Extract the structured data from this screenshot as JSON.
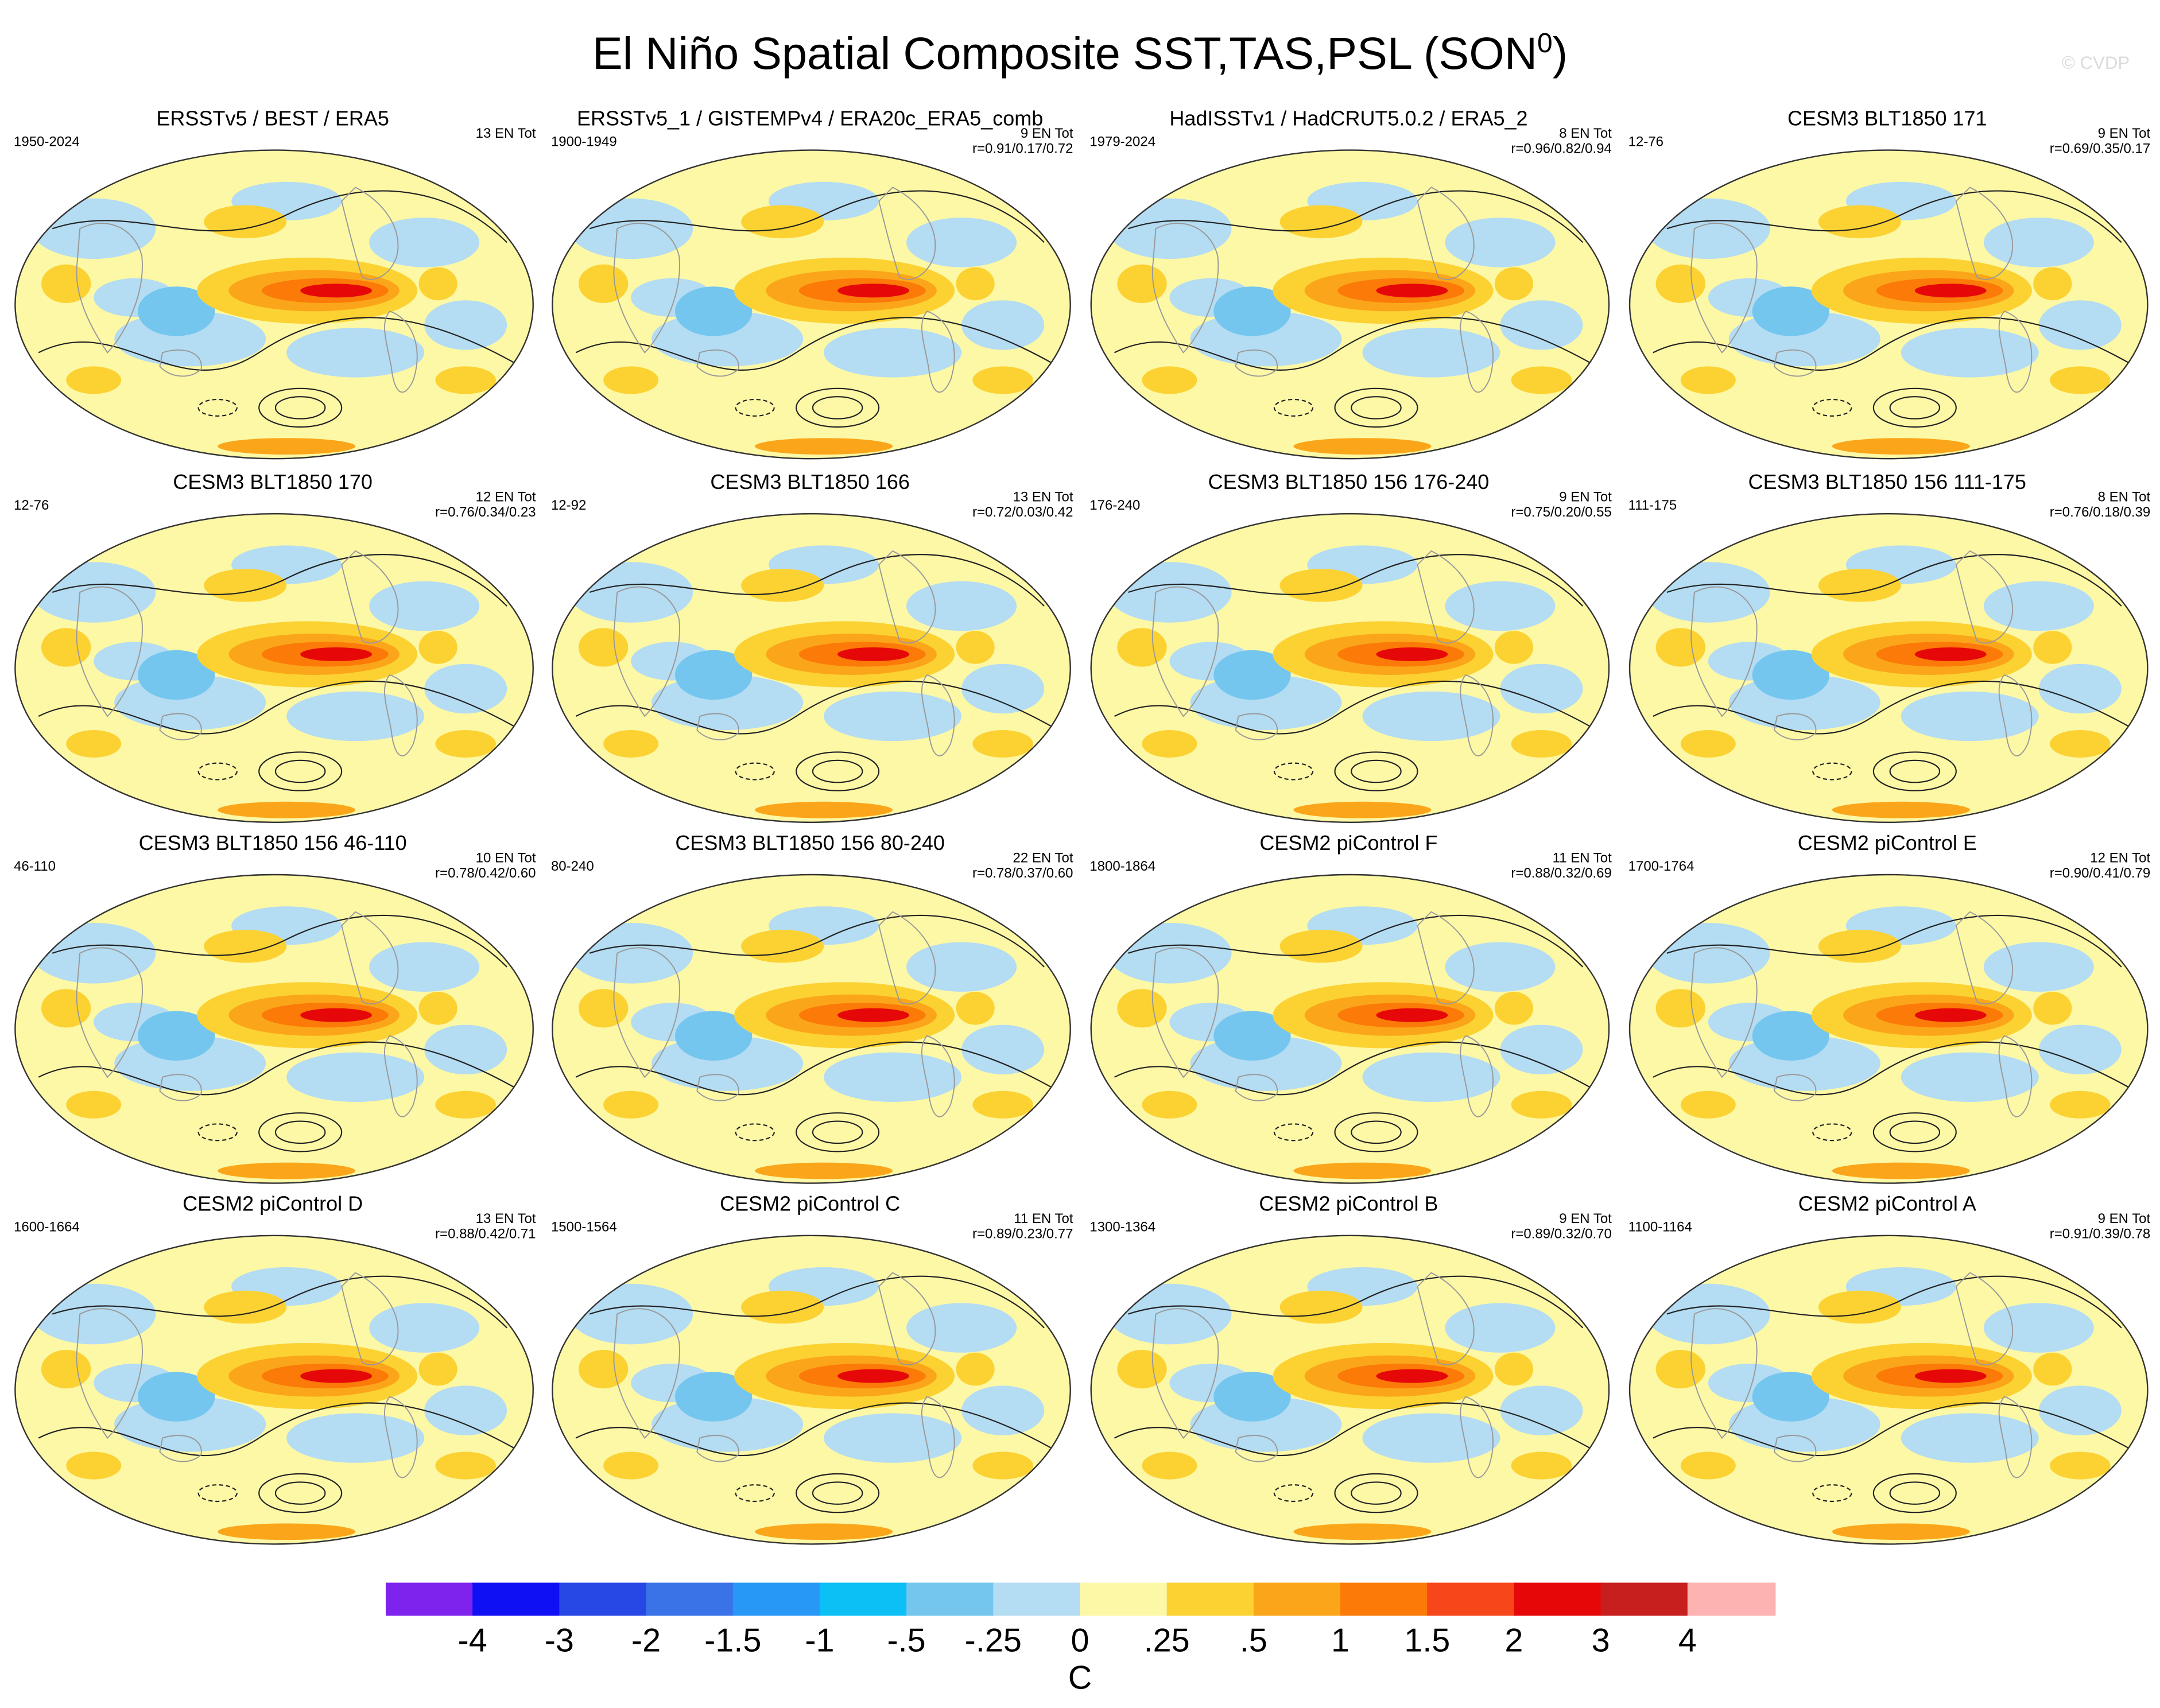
{
  "title": "El Niño Spatial Composite SST,TAS,PSL (SON",
  "title_superscript": "0",
  "title_close": ")",
  "watermark": "© CVDP",
  "panels": [
    {
      "title": "ERSSTv5 / BEST / ERA5",
      "years": "1950-2024",
      "count": "13 EN Tot",
      "r": ""
    },
    {
      "title": "ERSSTv5_1 / GISTEMPv4 / ERA20c_ERA5_comb",
      "years": "1900-1949",
      "count": "9 EN Tot",
      "r": "r=0.91/0.17/0.72"
    },
    {
      "title": "HadISSTv1 / HadCRUT5.0.2 / ERA5_2",
      "years": "1979-2024",
      "count": "8 EN Tot",
      "r": "r=0.96/0.82/0.94"
    },
    {
      "title": "CESM3 BLT1850 171",
      "years": "12-76",
      "count": "9 EN Tot",
      "r": "r=0.69/0.35/0.17"
    },
    {
      "title": "CESM3 BLT1850 170",
      "years": "12-76",
      "count": "12 EN Tot",
      "r": "r=0.76/0.34/0.23"
    },
    {
      "title": "CESM3 BLT1850 166",
      "years": "12-92",
      "count": "13 EN Tot",
      "r": "r=0.72/0.03/0.42"
    },
    {
      "title": "CESM3 BLT1850 156 176-240",
      "years": "176-240",
      "count": "9 EN Tot",
      "r": "r=0.75/0.20/0.55"
    },
    {
      "title": "CESM3 BLT1850 156 111-175",
      "years": "111-175",
      "count": "8 EN Tot",
      "r": "r=0.76/0.18/0.39"
    },
    {
      "title": "CESM3 BLT1850 156 46-110",
      "years": "46-110",
      "count": "10 EN Tot",
      "r": "r=0.78/0.42/0.60"
    },
    {
      "title": "CESM3 BLT1850 156 80-240",
      "years": "80-240",
      "count": "22 EN Tot",
      "r": "r=0.78/0.37/0.60"
    },
    {
      "title": "CESM2 piControl F",
      "years": "1800-1864",
      "count": "11 EN Tot",
      "r": "r=0.88/0.32/0.69"
    },
    {
      "title": "CESM2 piControl E",
      "years": "1700-1764",
      "count": "12 EN Tot",
      "r": "r=0.90/0.41/0.79"
    },
    {
      "title": "CESM2 piControl D",
      "years": "1600-1664",
      "count": "13 EN Tot",
      "r": "r=0.88/0.42/0.71"
    },
    {
      "title": "CESM2 piControl C",
      "years": "1500-1564",
      "count": "11 EN Tot",
      "r": "r=0.89/0.23/0.77"
    },
    {
      "title": "CESM2 piControl B",
      "years": "1300-1364",
      "count": "9 EN Tot",
      "r": "r=0.89/0.32/0.70"
    },
    {
      "title": "CESM2 piControl A",
      "years": "1100-1164",
      "count": "9 EN Tot",
      "r": "r=0.91/0.39/0.78"
    }
  ],
  "colorbar": {
    "colors": [
      "#7e22ee",
      "#1010f4",
      "#2848e6",
      "#3a72e8",
      "#2898f6",
      "#0cbff5",
      "#74c6ee",
      "#b4dcf2",
      "#fdf8a6",
      "#fcd233",
      "#fba61a",
      "#fb7a08",
      "#f6461a",
      "#e60808",
      "#c71e1e",
      "#feb3b3"
    ],
    "ticks": [
      "-4",
      "-3",
      "-2",
      "-1.5",
      "-1",
      "-.5",
      "-.25",
      "0",
      ".25",
      ".5",
      "1",
      "1.5",
      "2",
      "3",
      "4"
    ],
    "units": "C"
  }
}
